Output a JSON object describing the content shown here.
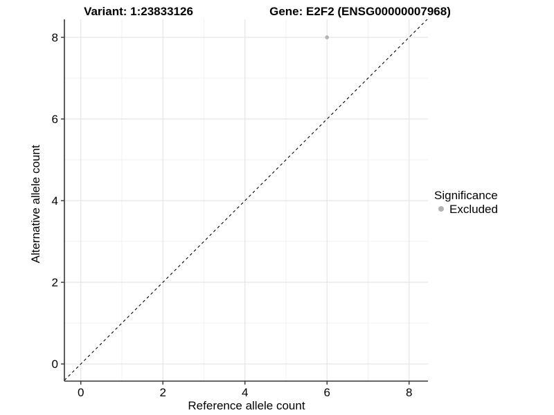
{
  "chart_data": {
    "type": "scatter",
    "titles": {
      "variant": "Variant: 1:23833126",
      "gene": "Gene: E2F2 (ENSG00000007968)"
    },
    "xlabel": "Reference allele count",
    "ylabel": "Alternative allele count",
    "xlim": [
      -0.4,
      8.46
    ],
    "ylim": [
      -0.42,
      8.44
    ],
    "xticks": [
      0,
      2,
      4,
      6,
      8
    ],
    "yticks": [
      0,
      2,
      4,
      6,
      8
    ],
    "minor_xticks": [
      1,
      3,
      5,
      7
    ],
    "minor_yticks": [
      1,
      3,
      5,
      7
    ],
    "grid": true,
    "points": [
      {
        "x": 6,
        "y": 8,
        "significance": "Excluded"
      }
    ],
    "reference_line": {
      "type": "identity",
      "slope": 1,
      "intercept": 0,
      "style": "dashed"
    },
    "legend": {
      "position": "right",
      "title": "Significance",
      "items": [
        {
          "label": "Excluded",
          "color": "#b3b3b3",
          "marker": "circle"
        }
      ]
    },
    "colors": {
      "background": "#ffffff",
      "point": "#b3b3b3",
      "axis_line": "#333333",
      "major_grid": "#e5e5e5",
      "minor_grid": "#f2f2f2",
      "dashed_line": "#000000",
      "text": "#000000"
    }
  }
}
